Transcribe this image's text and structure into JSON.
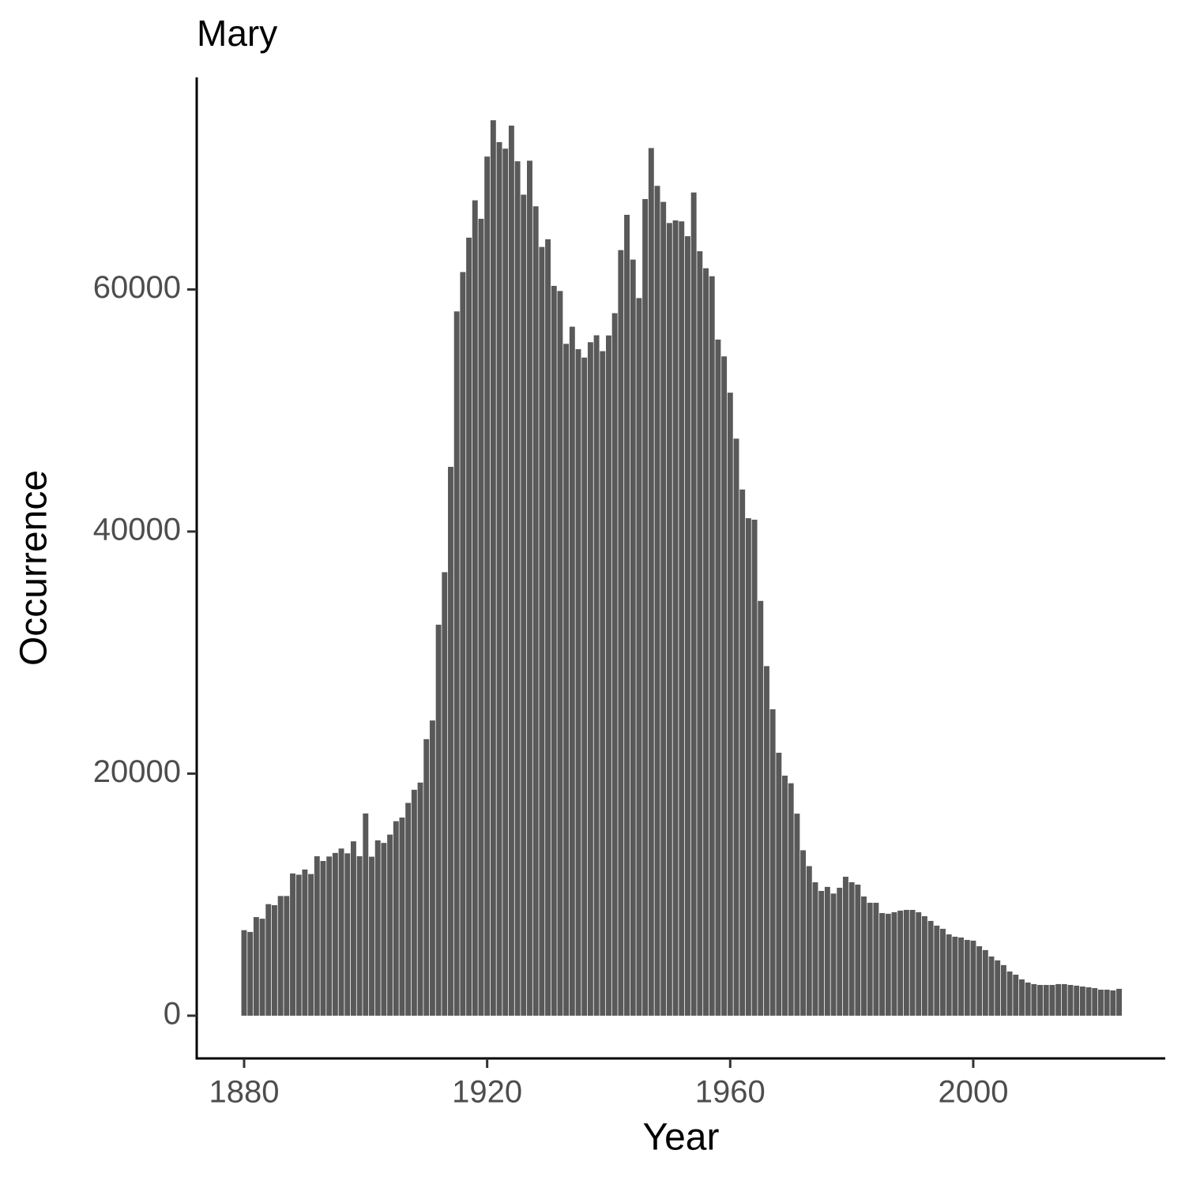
{
  "chart_data": {
    "type": "bar",
    "title": "Mary",
    "xlabel": "Year",
    "ylabel": "Occurrence",
    "color": "#595959",
    "x": [
      1880,
      1881,
      1882,
      1883,
      1884,
      1885,
      1886,
      1887,
      1888,
      1889,
      1890,
      1891,
      1892,
      1893,
      1894,
      1895,
      1896,
      1897,
      1898,
      1899,
      1900,
      1901,
      1902,
      1903,
      1904,
      1905,
      1906,
      1907,
      1908,
      1909,
      1910,
      1911,
      1912,
      1913,
      1914,
      1915,
      1916,
      1917,
      1918,
      1919,
      1920,
      1921,
      1922,
      1923,
      1924,
      1925,
      1926,
      1927,
      1928,
      1929,
      1930,
      1931,
      1932,
      1933,
      1934,
      1935,
      1936,
      1937,
      1938,
      1939,
      1940,
      1941,
      1942,
      1943,
      1944,
      1945,
      1946,
      1947,
      1948,
      1949,
      1950,
      1951,
      1952,
      1953,
      1954,
      1955,
      1956,
      1957,
      1958,
      1959,
      1960,
      1961,
      1962,
      1963,
      1964,
      1965,
      1966,
      1967,
      1968,
      1969,
      1970,
      1971,
      1972,
      1973,
      1974,
      1975,
      1976,
      1977,
      1978,
      1979,
      1980,
      1981,
      1982,
      1983,
      1984,
      1985,
      1986,
      1987,
      1988,
      1989,
      1990,
      1991,
      1992,
      1993,
      1994,
      1995,
      1996,
      1997,
      1998,
      1999,
      2000,
      2001,
      2002,
      2003,
      2004,
      2005,
      2006,
      2007,
      2008,
      2009,
      2010,
      2011,
      2012,
      2013,
      2014,
      2015,
      2016,
      2017,
      2018,
      2019,
      2020,
      2021,
      2022,
      2023,
      2024
    ],
    "values": [
      7065,
      6919,
      8148,
      8012,
      9217,
      9128,
      9889,
      9888,
      11754,
      11648,
      12078,
      11703,
      13172,
      12784,
      13151,
      13446,
      13811,
      13413,
      14406,
      13172,
      16707,
      13136,
      14486,
      14275,
      14961,
      16066,
      16370,
      17580,
      18665,
      19259,
      22848,
      24390,
      32304,
      36641,
      45345,
      58187,
      61438,
      64281,
      67366,
      65838,
      70980,
      73982,
      72173,
      71634,
      73536,
      70591,
      67830,
      70638,
      66869,
      63510,
      64146,
      60296,
      59872,
      55507,
      56924,
      55065,
      54373,
      55642,
      56213,
      54903,
      56201,
      58040,
      63251,
      66168,
      62469,
      59288,
      67468,
      71683,
      68560,
      67234,
      65489,
      65705,
      65628,
      64399,
      68012,
      63158,
      61753,
      61092,
      55859,
      54470,
      51474,
      47676,
      43473,
      41101,
      40980,
      34269,
      28881,
      25314,
      21725,
      19832,
      19203,
      16693,
      13668,
      12357,
      11020,
      10307,
      10642,
      10090,
      10570,
      11480,
      11030,
      10830,
      9850,
      9330,
      9330,
      8480,
      8420,
      8550,
      8680,
      8740,
      8740,
      8550,
      8220,
      7830,
      7440,
      7180,
      6720,
      6525,
      6460,
      6260,
      6200,
      5740,
      5420,
      4890,
      4570,
      4180,
      3650,
      3390,
      3000,
      2740,
      2610,
      2540,
      2540,
      2540,
      2610,
      2610,
      2540,
      2480,
      2410,
      2350,
      2280,
      2150,
      2150,
      2090,
      2220
    ],
    "xlim": [
      1872.2,
      2031.6
    ],
    "xticks": [
      1880,
      1920,
      1960,
      2000
    ],
    "ylim": [
      -3530,
      77520
    ],
    "yticks": [
      0,
      20000,
      40000,
      60000
    ]
  }
}
